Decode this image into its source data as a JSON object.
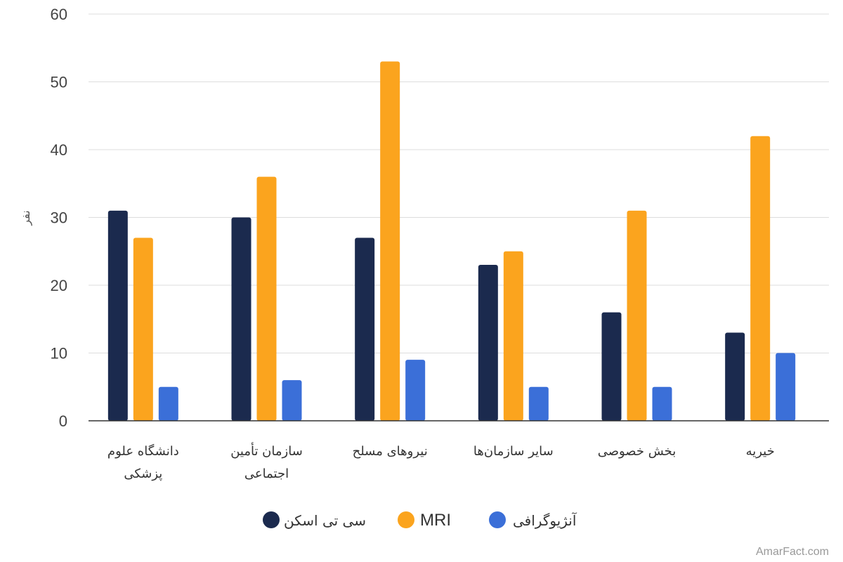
{
  "chart_data": {
    "type": "bar",
    "ylabel": "نفر",
    "ylim": [
      0,
      60
    ],
    "yticks": [
      0,
      10,
      20,
      30,
      40,
      50,
      60
    ],
    "grid": true,
    "legend_position": "bottom",
    "categories": [
      [
        "دانشگاه علوم",
        "پزشکی"
      ],
      [
        "سازمان تأمین",
        "اجتماعی"
      ],
      [
        "نیروهای مسلح"
      ],
      [
        "سایر سازمان‌ها"
      ],
      [
        "بخش خصوصی"
      ],
      [
        "خیریه"
      ]
    ],
    "series": [
      {
        "name": "سی تی اسکن",
        "color": "#1b2a4e",
        "values": [
          31,
          30,
          27,
          23,
          16,
          13
        ]
      },
      {
        "name": "MRI",
        "color": "#fba41e",
        "values": [
          27,
          36,
          53,
          25,
          31,
          42
        ]
      },
      {
        "name": "آنژیوگرافی",
        "color": "#3b6fd8",
        "values": [
          5,
          6,
          9,
          5,
          5,
          10
        ]
      }
    ]
  },
  "watermark": "AmarFact.com"
}
